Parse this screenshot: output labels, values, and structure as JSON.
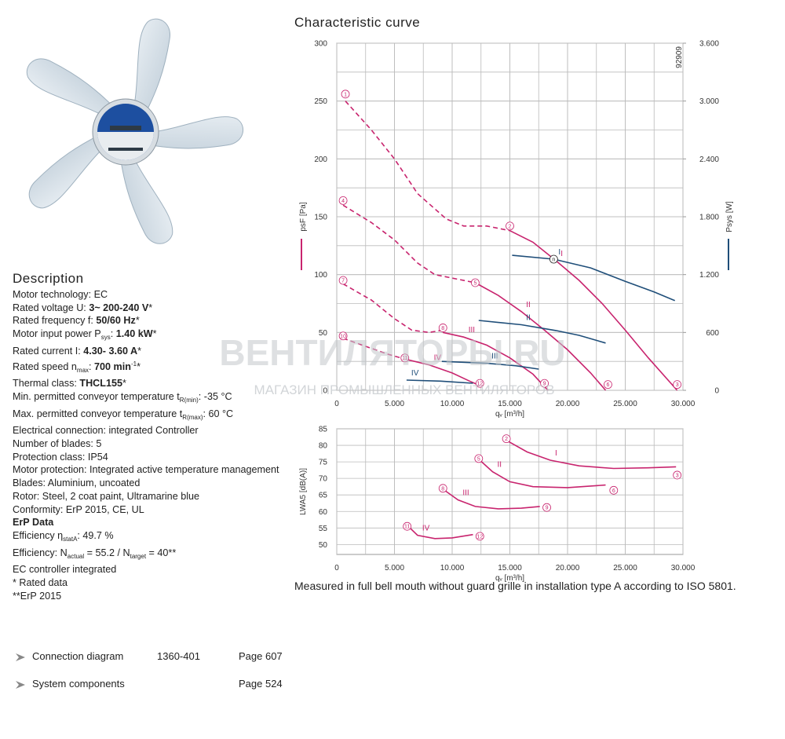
{
  "description": {
    "title": "Description",
    "lines": [
      [
        {
          "t": "Motor technology: EC"
        }
      ],
      [
        {
          "t": "Rated voltage U: "
        },
        {
          "t": "3~ 200-240 V",
          "s": "b"
        },
        {
          "t": "*"
        }
      ],
      [
        {
          "t": "Rated frequency f: "
        },
        {
          "t": "50/60 Hz",
          "s": "b"
        },
        {
          "t": "*"
        }
      ],
      [
        {
          "t": "Motor input power P"
        },
        {
          "t": "sys",
          "s": "sub"
        },
        {
          "t": ": "
        },
        {
          "t": "1.40 kW",
          "s": "b"
        },
        {
          "t": "*"
        }
      ],
      [
        {
          "t": "Rated current I: "
        },
        {
          "t": "4.30- 3.60 A",
          "s": "b"
        },
        {
          "t": "*"
        }
      ],
      [
        {
          "t": "Rated speed n"
        },
        {
          "t": "max",
          "s": "sub"
        },
        {
          "t": ": "
        },
        {
          "t": "700 min",
          "s": "b"
        },
        {
          "t": "-1",
          "s": "sup"
        },
        {
          "t": "*"
        }
      ],
      [
        {
          "t": "Thermal class: "
        },
        {
          "t": "THCL155",
          "s": "b"
        },
        {
          "t": "*"
        }
      ],
      [
        {
          "t": "Min. permitted conveyor temperature t"
        },
        {
          "t": "R(min)",
          "s": "sub"
        },
        {
          "t": ": -35  °C"
        }
      ],
      [
        {
          "t": "Max. permitted conveyor temperature t"
        },
        {
          "t": "R(max)",
          "s": "sub"
        },
        {
          "t": ": 60  °C"
        }
      ],
      [
        {
          "t": "Electrical connection: integrated Controller"
        }
      ],
      [
        {
          "t": "Number of blades: 5"
        }
      ],
      [
        {
          "t": "Protection class: IP54"
        }
      ],
      [
        {
          "t": "Motor protection: Integrated active temperature management"
        }
      ],
      [
        {
          "t": "Blades: Aluminium, uncoated"
        }
      ],
      [
        {
          "t": "Rotor: Steel, 2 coat paint, Ultramarine blue"
        }
      ],
      [
        {
          "t": "Conformity: ErP 2015, CE, UL"
        }
      ],
      [
        {
          "t": "ErP Data",
          "s": "b"
        }
      ],
      [
        {
          "t": "Efficiency η"
        },
        {
          "t": "statA",
          "s": "sub"
        },
        {
          "t": ": 49.7 %"
        }
      ],
      [
        {
          "t": "Efficiency: N"
        },
        {
          "t": "actual",
          "s": "sub"
        },
        {
          "t": " = 55.2 / N"
        },
        {
          "t": "target",
          "s": "sub"
        },
        {
          "t": " = 40**"
        }
      ],
      [
        {
          "t": "EC controller integrated"
        }
      ],
      [
        {
          "t": "* Rated data"
        }
      ],
      [
        {
          "t": "**ErP 2015"
        }
      ]
    ]
  },
  "links": [
    {
      "label": "Connection diagram",
      "code": "1360-401",
      "page": "Page 607"
    },
    {
      "label": "System components",
      "page": "Page 524"
    }
  ],
  "chart_title": "Characteristic curve",
  "caption": "Measured in full bell mouth without guard grille in installation type A according to ISO 5801.",
  "watermark": {
    "title": "ВЕНТИЛЯТОРЫ.RU",
    "subtitle": "МАГАЗИН ПРОМЫШЛЕННЫХ ВЕНТИЛЯТОРОВ"
  },
  "chart_data": [
    {
      "type": "line",
      "id_label": "92909",
      "xlabel": "qᵥ [m³/h]",
      "ylabel": "psF [Pa]",
      "y2label": "Psys [W]",
      "ylabel_color": "#c8246e",
      "y2label_color": "#1f4e79",
      "xlim": [
        0,
        30000
      ],
      "ylim": [
        0,
        300
      ],
      "y2lim": [
        0,
        3600
      ],
      "xticks": [
        0,
        {
          "value": 5000,
          "label": "5.000"
        },
        {
          "value": 10000,
          "label": "10.000"
        },
        {
          "value": 15000,
          "label": "15.000"
        },
        {
          "value": 20000,
          "label": "20.000"
        },
        {
          "value": 25000,
          "label": "25.000"
        },
        {
          "value": 30000,
          "label": "30.000"
        }
      ],
      "yticks": [
        0,
        50,
        100,
        150,
        200,
        250,
        300
      ],
      "y2ticks": [
        0,
        600,
        {
          "value": 1200,
          "label": "1.200"
        },
        {
          "value": 1800,
          "label": "1.800"
        },
        {
          "value": 2400,
          "label": "2.400"
        },
        {
          "value": 3000,
          "label": "3.000"
        },
        {
          "value": 3600,
          "label": "3.600"
        }
      ],
      "minor_grid": {
        "x": 2500,
        "y": 25
      },
      "series": [
        {
          "color": "#c8246e",
          "dashed": true,
          "x": [
            750,
            3000,
            5000,
            7000,
            9500,
            11000,
            13000,
            15000
          ],
          "values": [
            250,
            225,
            200,
            170,
            148,
            142,
            142,
            138
          ]
        },
        {
          "name": "I",
          "color": "#c8246e",
          "x": [
            15000,
            17000,
            19000,
            21000,
            23000,
            25000,
            27000,
            29500
          ],
          "values": [
            138,
            128,
            112,
            95,
            75,
            52,
            28,
            0
          ]
        },
        {
          "color": "#c8246e",
          "dashed": true,
          "x": [
            550,
            3000,
            5000,
            7000,
            8500,
            10000,
            12000
          ],
          "values": [
            160,
            145,
            130,
            110,
            100,
            97,
            93
          ]
        },
        {
          "name": "II",
          "color": "#c8246e",
          "x": [
            12000,
            14000,
            16000,
            18000,
            20000,
            22000,
            23300
          ],
          "values": [
            93,
            82,
            68,
            52,
            35,
            15,
            0
          ]
        },
        {
          "color": "#c8246e",
          "dashed": true,
          "x": [
            550,
            3000,
            5000,
            6500,
            8000,
            9200
          ],
          "values": [
            92,
            78,
            62,
            52,
            50,
            52
          ]
        },
        {
          "name": "III",
          "color": "#c8246e",
          "x": [
            9200,
            11000,
            13000,
            15000,
            17000,
            18300
          ],
          "values": [
            50,
            46,
            39,
            28,
            14,
            0
          ]
        },
        {
          "color": "#c8246e",
          "dashed": true,
          "x": [
            550,
            2500,
            4500,
            5900
          ],
          "values": [
            45,
            38,
            31,
            27
          ]
        },
        {
          "name": "IV",
          "color": "#c8246e",
          "x": [
            5900,
            8000,
            10000,
            11500,
            12200
          ],
          "values": [
            27,
            22,
            15,
            8,
            5
          ]
        },
        {
          "name": "I",
          "axis": "y2",
          "color": "#1f4e79",
          "x": [
            15200,
            18800,
            22000,
            25000,
            27500,
            29300
          ],
          "values": [
            1400,
            1360,
            1270,
            1130,
            1020,
            930
          ]
        },
        {
          "name": "II",
          "axis": "y2",
          "color": "#1f4e79",
          "x": [
            12300,
            16000,
            19000,
            21000,
            23300
          ],
          "values": [
            725,
            680,
            620,
            570,
            490
          ]
        },
        {
          "name": "III",
          "axis": "y2",
          "color": "#1f4e79",
          "x": [
            9100,
            13000,
            15500,
            17500
          ],
          "values": [
            300,
            280,
            255,
            220
          ]
        },
        {
          "name": "IV",
          "axis": "y2",
          "color": "#1f4e79",
          "x": [
            6050,
            9000,
            11800
          ],
          "values": [
            106,
            95,
            73
          ]
        }
      ],
      "annotations": [
        {
          "text": "1",
          "x": 750,
          "y": 256
        },
        {
          "text": "2",
          "x": 15000,
          "y": 142
        },
        {
          "text": "3",
          "x": 29500,
          "y": 5
        },
        {
          "text": "4",
          "x": 550,
          "y": 164
        },
        {
          "text": "5",
          "x": 12000,
          "y": 93
        },
        {
          "text": "6",
          "x": 23500,
          "y": 5
        },
        {
          "text": "7",
          "x": 550,
          "y": 95
        },
        {
          "text": "8",
          "x": 9200,
          "y": 54
        },
        {
          "text": "9",
          "x": 18000,
          "y": 6
        },
        {
          "text": "10",
          "x": 550,
          "y": 47
        },
        {
          "text": "11",
          "x": 5900,
          "y": 28
        },
        {
          "text": "12",
          "x": 12400,
          "y": 6
        },
        {
          "text": "n",
          "x": 18800,
          "y": 1360,
          "axis": "y2"
        }
      ]
    },
    {
      "type": "line",
      "xlabel": "qᵥ [m³/h]",
      "ylabel": "LWA5 [dB(A)]",
      "xlim": [
        0,
        30000
      ],
      "ylim": [
        47,
        85
      ],
      "xticks": [
        0,
        {
          "value": 5000,
          "label": "5.000"
        },
        {
          "value": 10000,
          "label": "10.000"
        },
        {
          "value": 15000,
          "label": "15.000"
        },
        {
          "value": 20000,
          "label": "20.000"
        },
        {
          "value": 25000,
          "label": "25.000"
        },
        {
          "value": 30000,
          "label": "30.000"
        }
      ],
      "yticks": [
        50,
        55,
        60,
        65,
        70,
        75,
        80,
        85
      ],
      "minor_grid": {
        "x": 2500
      },
      "series": [
        {
          "name": "I",
          "color": "#c8246e",
          "x": [
            14700,
            16500,
            18500,
            21000,
            24000,
            27000,
            29400
          ],
          "values": [
            81.5,
            78,
            75.5,
            73.8,
            73,
            73.2,
            73.5
          ]
        },
        {
          "name": "II",
          "color": "#c8246e",
          "x": [
            12400,
            13500,
            15000,
            17000,
            20000,
            23300
          ],
          "values": [
            75.5,
            72,
            69,
            67.5,
            67.2,
            68
          ]
        },
        {
          "name": "III",
          "color": "#c8246e",
          "x": [
            9300,
            10500,
            12000,
            14000,
            16000,
            17600
          ],
          "values": [
            66.5,
            63.5,
            61.5,
            60.8,
            61,
            61.5
          ]
        },
        {
          "name": "IV",
          "color": "#c8246e",
          "x": [
            6200,
            7000,
            8500,
            10000,
            11800
          ],
          "values": [
            55.5,
            52.8,
            51.8,
            52,
            53
          ]
        }
      ],
      "annotations": [
        {
          "text": "2",
          "x": 14700,
          "y": 82
        },
        {
          "text": "3",
          "x": 29500,
          "y": 71
        },
        {
          "text": "5",
          "x": 12300,
          "y": 76
        },
        {
          "text": "6",
          "x": 24000,
          "y": 66.4
        },
        {
          "text": "8",
          "x": 9200,
          "y": 67
        },
        {
          "text": "9",
          "x": 18200,
          "y": 61.2
        },
        {
          "text": "11",
          "x": 6100,
          "y": 55.5
        },
        {
          "text": "12",
          "x": 12400,
          "y": 52.5
        }
      ]
    }
  ]
}
